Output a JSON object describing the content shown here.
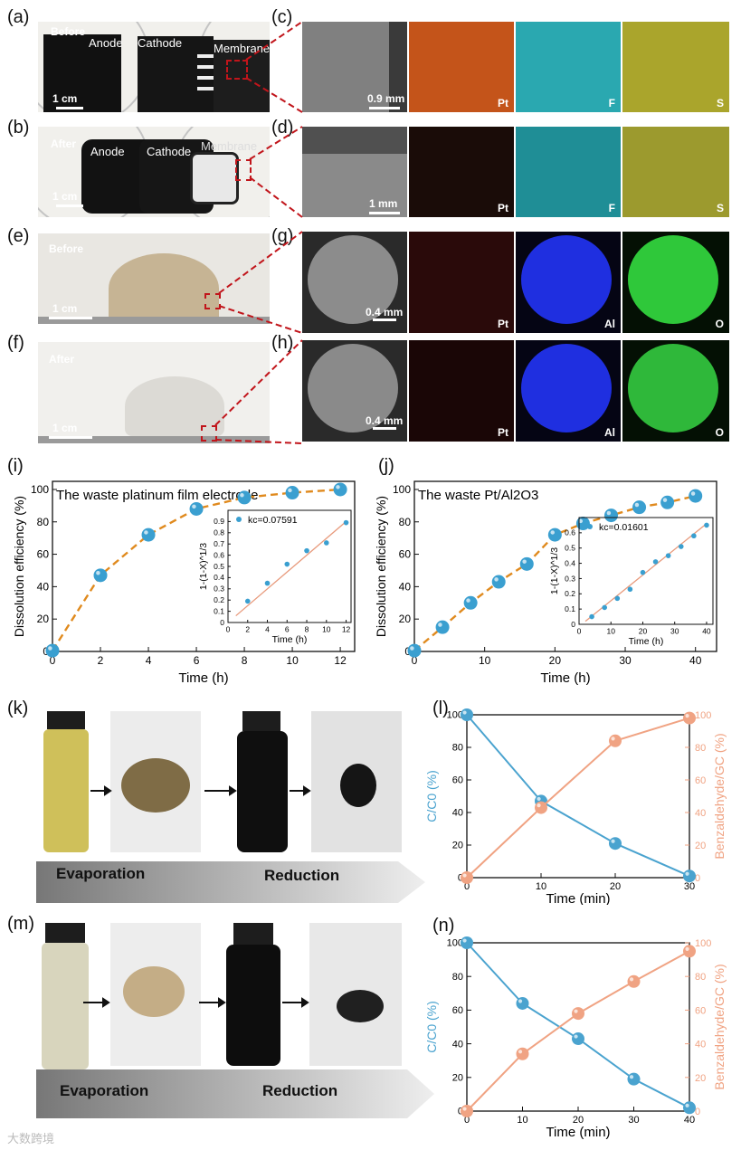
{
  "panels": {
    "a": {
      "letter": "(a)",
      "state": "Before",
      "labels": [
        "Anode",
        "Cathode",
        "Membrane"
      ],
      "scale": "1 cm"
    },
    "b": {
      "letter": "(b)",
      "state": "After",
      "labels": [
        "Anode",
        "Cathode",
        "Membrane"
      ],
      "scale": "1 cm"
    },
    "c": {
      "letter": "(c)",
      "scale": "0.9 mm",
      "elements": [
        "Pt",
        "F",
        "S"
      ]
    },
    "d": {
      "letter": "(d)",
      "scale": "1 mm",
      "elements": [
        "Pt",
        "F",
        "S"
      ]
    },
    "e": {
      "letter": "(e)",
      "state": "Before",
      "scale": "1 cm"
    },
    "f": {
      "letter": "(f)",
      "state": "After",
      "scale": "1 cm"
    },
    "g": {
      "letter": "(g)",
      "scale": "0.4 mm",
      "elements": [
        "Pt",
        "Al",
        "O"
      ]
    },
    "h": {
      "letter": "(h)",
      "scale": "0.4 mm",
      "elements": [
        "Pt",
        "Al",
        "O"
      ]
    },
    "i": {
      "letter": "(i)"
    },
    "j": {
      "letter": "(j)"
    },
    "k": {
      "letter": "(k)",
      "steps": [
        "Evaporation",
        "Reduction"
      ]
    },
    "l": {
      "letter": "(l)"
    },
    "m": {
      "letter": "(m)",
      "steps": [
        "Evaporation",
        "Reduction"
      ]
    },
    "n": {
      "letter": "(n)"
    }
  },
  "colors": {
    "blue_marker": "#3a9fd0",
    "orange_dash": "#e08a1e",
    "fit_line": "#e89a7c",
    "salmon": "#f0a383",
    "blue_line": "#4aa3cf",
    "pt_map": "#c4541a",
    "f_map": "#3fc7cf",
    "s_map": "#c9c23a",
    "al_map": "#1f2fe0",
    "o_map": "#2fc83a"
  },
  "watermark": "大数跨境",
  "chart_data": [
    {
      "id": "i",
      "type": "scatter",
      "title": "The waste platinum film electrode",
      "xlabel": "Time (h)",
      "ylabel": "Dissolution efficiency (%)",
      "xlim": [
        0,
        12.6
      ],
      "ylim": [
        0,
        105
      ],
      "xticks": [
        0,
        2,
        4,
        6,
        8,
        10,
        12
      ],
      "yticks": [
        0,
        20,
        40,
        60,
        80,
        100
      ],
      "x": [
        0,
        2,
        4,
        6,
        8,
        10,
        12
      ],
      "y": [
        0.5,
        47,
        72,
        88,
        95,
        98,
        100
      ],
      "fit": "dashed exponential",
      "inset": {
        "xlabel": "Time (h)",
        "ylabel": "1-(1-X)^1/3",
        "legend": "kc=0.07591",
        "xlim": [
          0,
          12.5
        ],
        "ylim": [
          0,
          1.0
        ],
        "xticks": [
          0,
          2,
          4,
          6,
          8,
          10,
          12
        ],
        "yticks": [
          0,
          0.1,
          0.2,
          0.3,
          0.4,
          0.5,
          0.6,
          0.7,
          0.8,
          0.9
        ],
        "x": [
          2,
          4,
          6,
          8,
          10,
          12
        ],
        "y": [
          0.19,
          0.35,
          0.52,
          0.64,
          0.71,
          0.89
        ],
        "fit_line": [
          [
            0.8,
            0.06
          ],
          [
            12,
            0.9
          ]
        ]
      }
    },
    {
      "id": "j",
      "type": "scatter",
      "title": "The waste Pt/Al2O3",
      "xlabel": "Time (h)",
      "ylabel": "Dissolution efficiency (%)",
      "xlim": [
        0,
        43
      ],
      "ylim": [
        0,
        105
      ],
      "xticks": [
        0,
        10,
        20,
        30,
        40
      ],
      "yticks": [
        0,
        20,
        40,
        60,
        80,
        100
      ],
      "x": [
        0,
        4,
        8,
        12,
        16,
        20,
        24,
        28,
        32,
        36,
        40
      ],
      "y": [
        0.5,
        15,
        30,
        43,
        54,
        72,
        79,
        84,
        89,
        92,
        96
      ],
      "fit": "dashed exponential",
      "inset": {
        "xlabel": "Time (h)",
        "ylabel": "1-(1-X)^1/3",
        "legend": "kc=0.01601",
        "xlim": [
          0,
          42
        ],
        "ylim": [
          0,
          0.7
        ],
        "xticks": [
          0,
          10,
          20,
          30,
          40
        ],
        "yticks": [
          0,
          0.1,
          0.2,
          0.3,
          0.4,
          0.5,
          0.6
        ],
        "x": [
          4,
          8,
          12,
          16,
          20,
          24,
          28,
          32,
          36,
          40
        ],
        "y": [
          0.05,
          0.11,
          0.17,
          0.23,
          0.34,
          0.41,
          0.45,
          0.51,
          0.58,
          0.65
        ],
        "fit_line": [
          [
            2,
            0.02
          ],
          [
            40,
            0.66
          ]
        ]
      }
    },
    {
      "id": "l",
      "type": "line",
      "xlabel": "Time (min)",
      "ylabel_left": "C/C0 (%)",
      "ylabel_right": "Benzaldehyde/GC (%)",
      "xlim": [
        0,
        30
      ],
      "ylim": [
        0,
        100
      ],
      "xticks": [
        0,
        10,
        20,
        30
      ],
      "yticks": [
        0,
        20,
        40,
        60,
        80,
        100
      ],
      "x": [
        0,
        10,
        20,
        30
      ],
      "series": [
        {
          "name": "C/C0",
          "axis": "left",
          "values": [
            100,
            47,
            21,
            1
          ]
        },
        {
          "name": "Benzaldehyde/GC",
          "axis": "right",
          "values": [
            0,
            43,
            84,
            98
          ]
        }
      ]
    },
    {
      "id": "n",
      "type": "line",
      "xlabel": "Time (min)",
      "ylabel_left": "C/C0 (%)",
      "ylabel_right": "Benzaldehyde/GC (%)",
      "xlim": [
        0,
        40
      ],
      "ylim": [
        0,
        100
      ],
      "xticks": [
        0,
        10,
        20,
        30,
        40
      ],
      "yticks": [
        0,
        20,
        40,
        60,
        80,
        100
      ],
      "x": [
        0,
        10,
        20,
        30,
        40
      ],
      "series": [
        {
          "name": "C/C0",
          "axis": "left",
          "values": [
            100,
            64,
            43,
            19,
            2
          ]
        },
        {
          "name": "Benzaldehyde/GC",
          "axis": "right",
          "values": [
            0,
            34,
            58,
            77,
            95
          ]
        }
      ]
    }
  ]
}
